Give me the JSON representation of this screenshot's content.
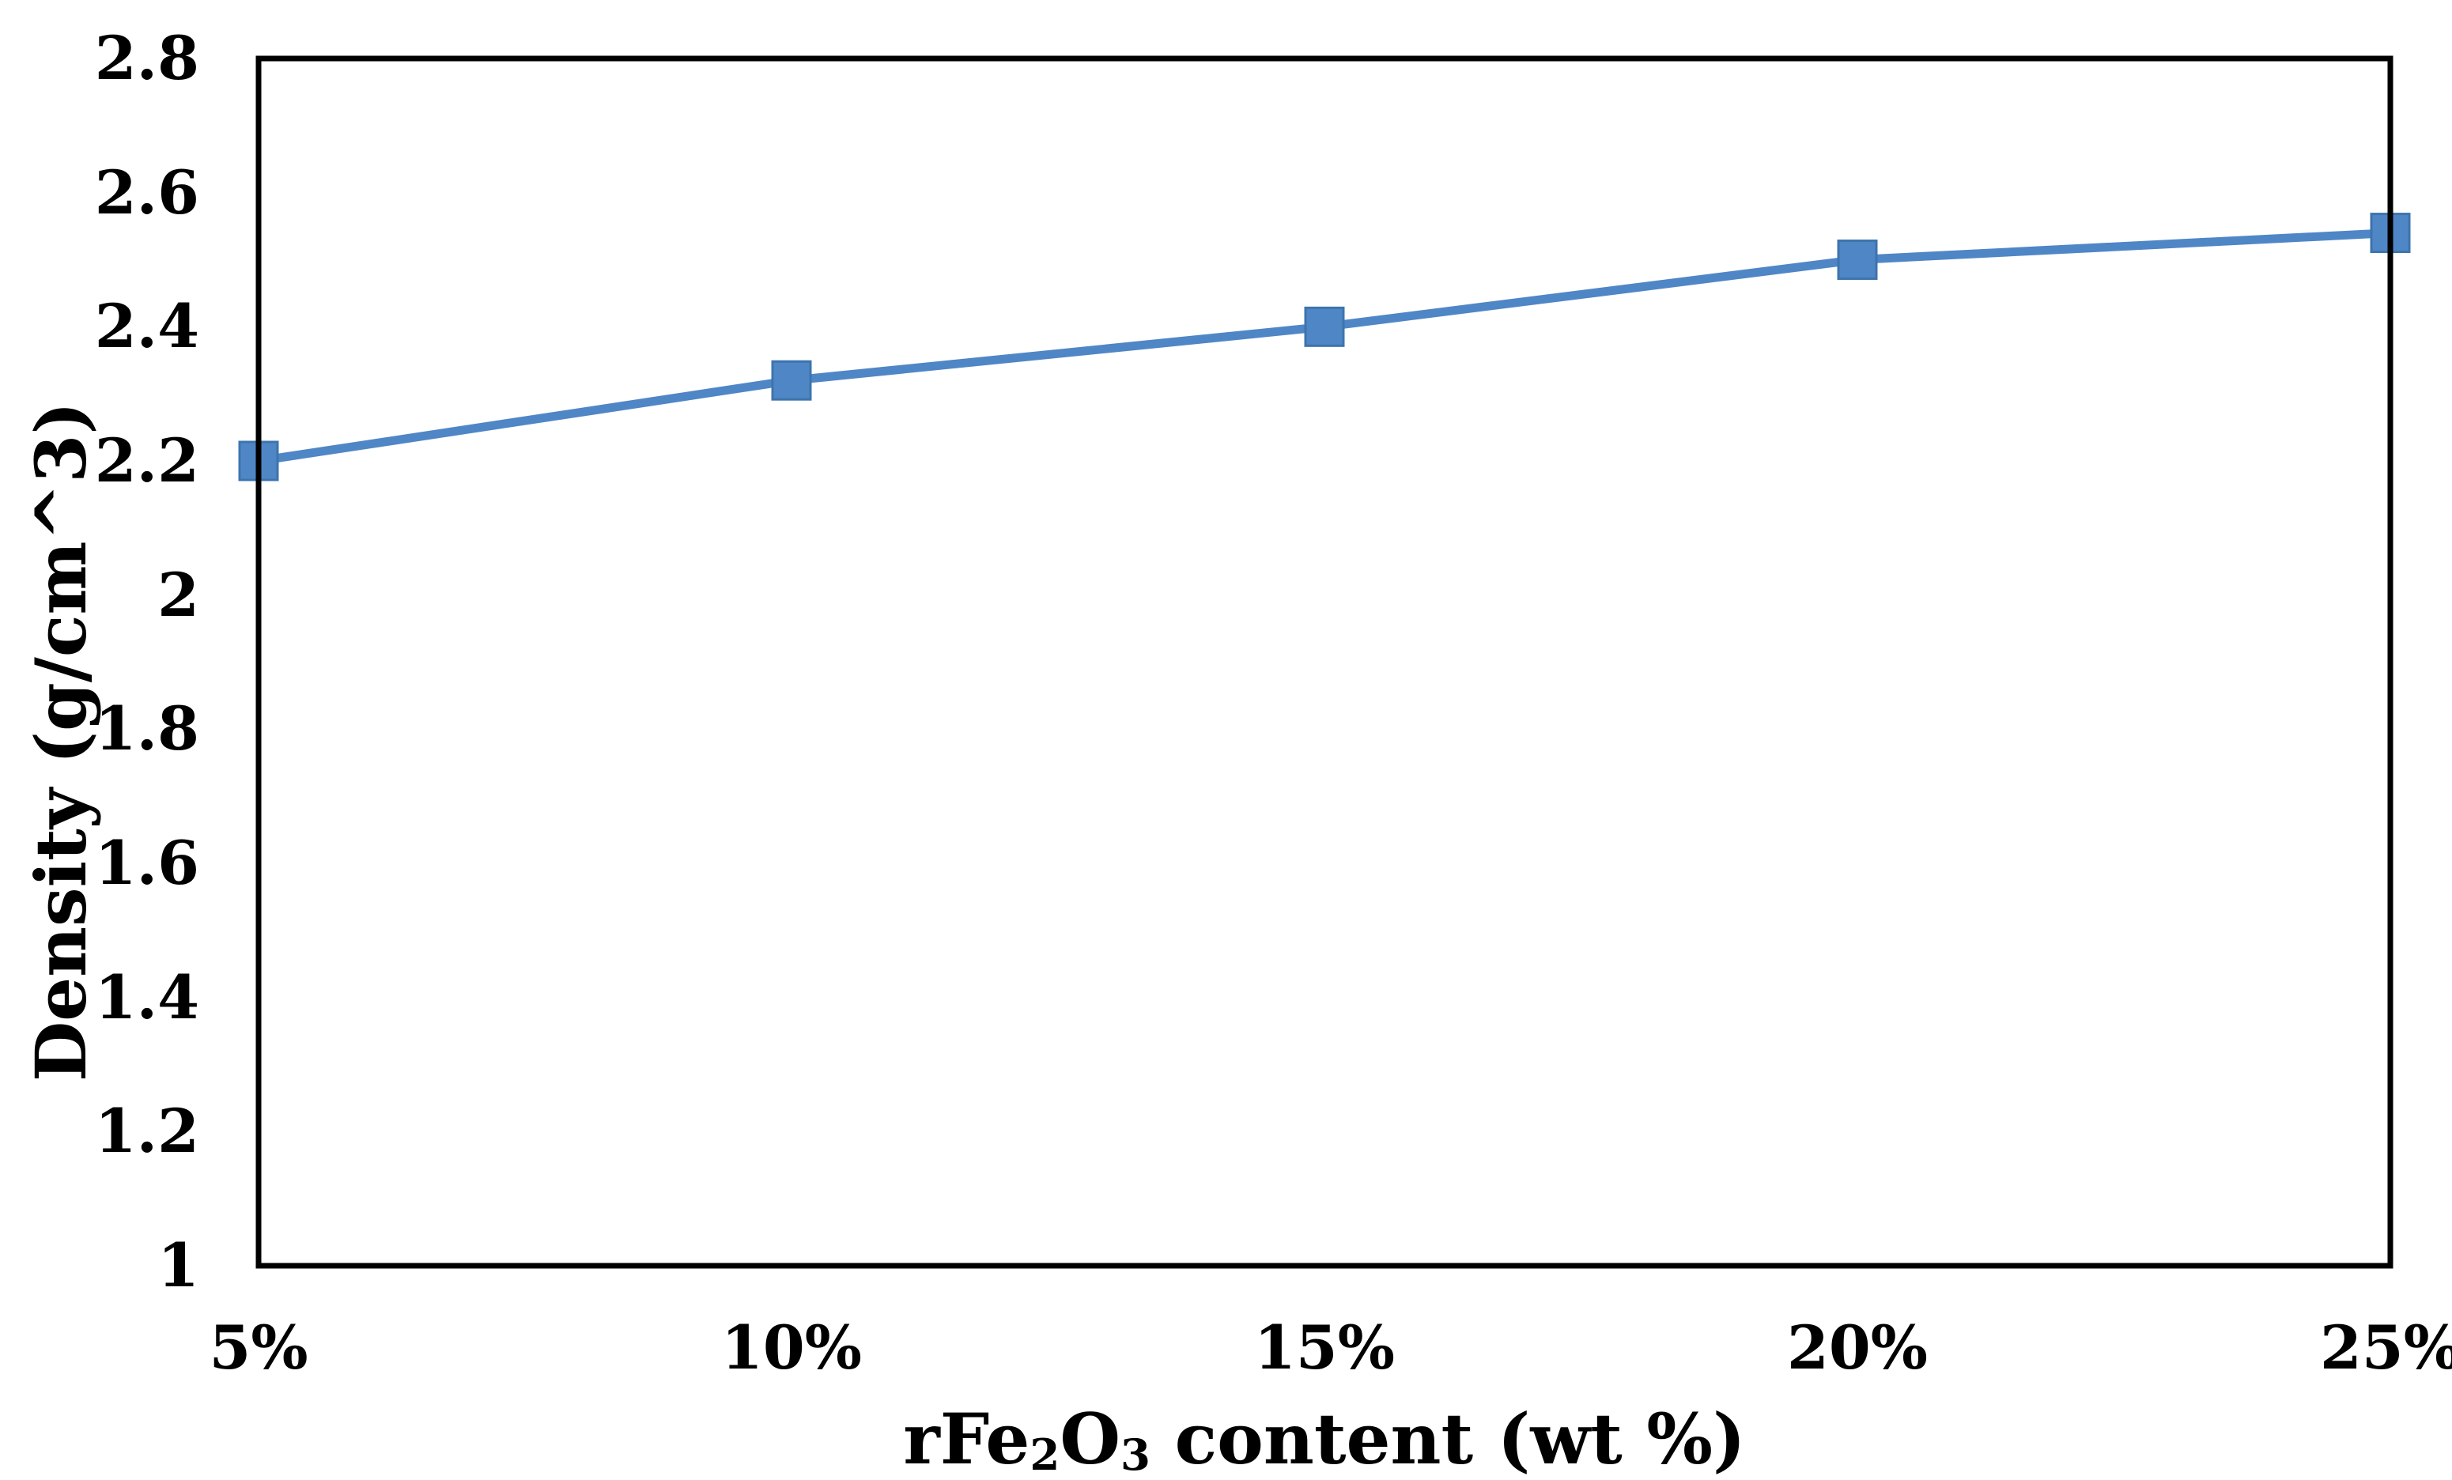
{
  "chart_data": {
    "type": "line",
    "title": "",
    "categories": [
      "5%",
      "10%",
      "15%",
      "20%",
      "25%"
    ],
    "series": [
      {
        "name": "Density",
        "values": [
          2.2,
          2.32,
          2.4,
          2.5,
          2.54
        ]
      }
    ],
    "xlabel_plain": "rFe2O3 content (wt %)",
    "xlabel_parts": [
      {
        "text": "rFe",
        "sub": false
      },
      {
        "text": "2",
        "sub": true
      },
      {
        "text": "O",
        "sub": false
      },
      {
        "text": "3",
        "sub": true
      },
      {
        "text": " content (wt %)",
        "sub": false
      }
    ],
    "ylabel": "Density (g/cm^3)",
    "ylim": [
      1,
      2.8
    ],
    "ytick_values": [
      1,
      1.2,
      1.4,
      1.6,
      1.8,
      2,
      2.2,
      2.4,
      2.6,
      2.8
    ],
    "ytick_labels": [
      "1",
      "1.2",
      "1.4",
      "1.6",
      "1.8",
      "2",
      "2.2",
      "2.4",
      "2.6",
      "2.8"
    ],
    "grid": false,
    "legend": "none",
    "marker": "square",
    "line_color": "#4f86c6",
    "marker_fill_color": "#4f86c6",
    "marker_edge_color": "#3e74ad",
    "axis_color": "#000000",
    "background_color": "#ffffff"
  }
}
